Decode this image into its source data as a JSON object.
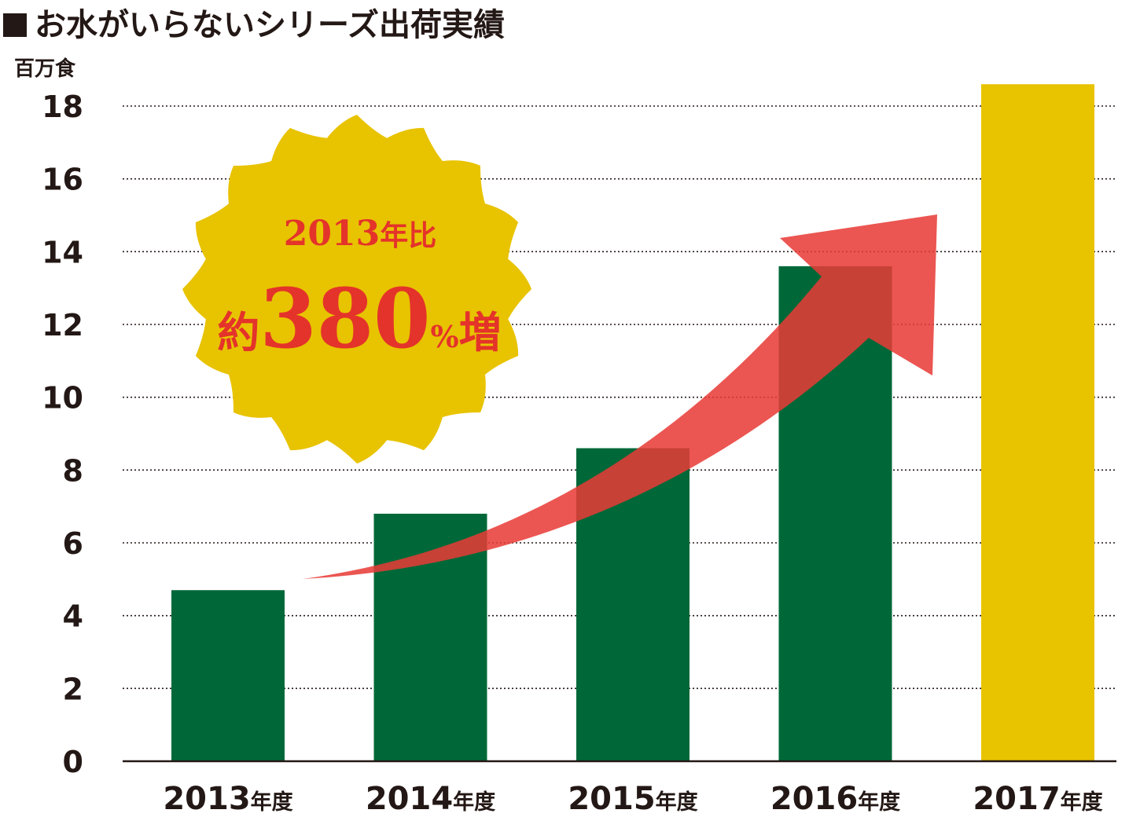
{
  "chart_data": {
    "type": "bar",
    "title": "お水がいらないシリーズ出荷実績",
    "unit_label": "百万食",
    "categories": [
      {
        "year": "2013",
        "suffix": "年度"
      },
      {
        "year": "2014",
        "suffix": "年度"
      },
      {
        "year": "2015",
        "suffix": "年度"
      },
      {
        "year": "2016",
        "suffix": "年度"
      },
      {
        "year": "2017",
        "suffix": "年度"
      }
    ],
    "values": [
      4.7,
      6.8,
      8.6,
      13.6,
      18.6
    ],
    "ylim": [
      0,
      18
    ],
    "yticks": [
      "0",
      "2",
      "4",
      "6",
      "8",
      "10",
      "12",
      "14",
      "16",
      "18"
    ],
    "grid": "dotted horizontal lines",
    "colors": {
      "bar": "#006838",
      "highlight_bar": "#e8c300",
      "arrow": "#e83a35",
      "badge": "#e8c300",
      "badge_text": "#e4332a",
      "text": "#231815"
    },
    "highlight_index": 4,
    "annotation": {
      "line1_number": "2013",
      "line1_suffix": "年比",
      "line2_prefix": "約",
      "line2_number": "380",
      "line2_percent": "%",
      "line2_suffix": "増"
    },
    "trend_arrow": "increasing arrow from 2013 to 2016"
  }
}
